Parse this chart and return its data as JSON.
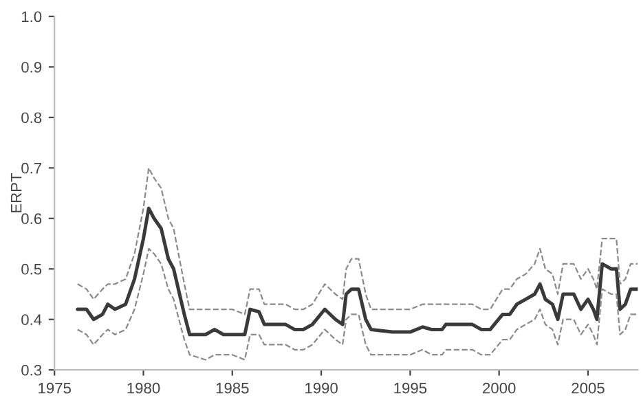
{
  "chart_data": {
    "type": "line",
    "ylabel": "ERPT",
    "x": [
      1976.3,
      1976.8,
      1977.2,
      1977.7,
      1978.0,
      1978.4,
      1979.0,
      1979.5,
      1980.0,
      1980.3,
      1980.6,
      1981.0,
      1981.4,
      1981.7,
      1982.3,
      1982.6,
      1983.5,
      1984.0,
      1984.5,
      1985.0,
      1985.7,
      1986.0,
      1986.5,
      1986.8,
      1987.5,
      1988.0,
      1988.5,
      1989.0,
      1989.5,
      1990.2,
      1990.8,
      1991.2,
      1991.4,
      1991.7,
      1992.1,
      1992.5,
      1992.8,
      1994.0,
      1995.0,
      1995.7,
      1996.2,
      1996.8,
      1997.0,
      1998.5,
      1999.0,
      1999.5,
      2000.2,
      2000.6,
      2001.0,
      2001.5,
      2002.0,
      2002.3,
      2002.6,
      2003.0,
      2003.3,
      2003.6,
      2004.2,
      2004.6,
      2005.0,
      2005.3,
      2005.5,
      2005.8,
      2006.3,
      2006.6,
      2006.8,
      2007.1,
      2007.4,
      2007.8
    ],
    "series": [
      {
        "color": "#3a3a3a",
        "line_style": "solid",
        "values": [
          0.42,
          0.42,
          0.4,
          0.41,
          0.43,
          0.42,
          0.43,
          0.48,
          0.56,
          0.62,
          0.6,
          0.58,
          0.52,
          0.5,
          0.41,
          0.37,
          0.37,
          0.38,
          0.37,
          0.37,
          0.37,
          0.42,
          0.415,
          0.39,
          0.39,
          0.39,
          0.38,
          0.38,
          0.39,
          0.42,
          0.4,
          0.39,
          0.45,
          0.46,
          0.46,
          0.4,
          0.38,
          0.375,
          0.375,
          0.385,
          0.38,
          0.38,
          0.39,
          0.39,
          0.38,
          0.38,
          0.41,
          0.41,
          0.43,
          0.44,
          0.45,
          0.47,
          0.44,
          0.43,
          0.4,
          0.45,
          0.45,
          0.42,
          0.44,
          0.42,
          0.4,
          0.51,
          0.5,
          0.5,
          0.42,
          0.43,
          0.46,
          0.46
        ]
      },
      {
        "color": "#8a8a8a",
        "line_style": "dashed",
        "values": [
          0.47,
          0.46,
          0.44,
          0.46,
          0.47,
          0.47,
          0.48,
          0.53,
          0.62,
          0.7,
          0.68,
          0.66,
          0.6,
          0.58,
          0.47,
          0.42,
          0.42,
          0.42,
          0.42,
          0.42,
          0.41,
          0.46,
          0.46,
          0.43,
          0.43,
          0.43,
          0.42,
          0.42,
          0.43,
          0.47,
          0.45,
          0.44,
          0.5,
          0.52,
          0.52,
          0.45,
          0.42,
          0.42,
          0.42,
          0.43,
          0.43,
          0.43,
          0.43,
          0.43,
          0.42,
          0.42,
          0.46,
          0.46,
          0.48,
          0.49,
          0.51,
          0.54,
          0.5,
          0.49,
          0.45,
          0.51,
          0.51,
          0.48,
          0.5,
          0.48,
          0.46,
          0.56,
          0.56,
          0.56,
          0.47,
          0.48,
          0.51,
          0.51
        ]
      },
      {
        "color": "#8a8a8a",
        "line_style": "dashed",
        "values": [
          0.38,
          0.37,
          0.35,
          0.37,
          0.38,
          0.37,
          0.38,
          0.42,
          0.49,
          0.54,
          0.53,
          0.51,
          0.46,
          0.44,
          0.36,
          0.33,
          0.32,
          0.33,
          0.33,
          0.33,
          0.32,
          0.37,
          0.37,
          0.35,
          0.35,
          0.35,
          0.34,
          0.34,
          0.35,
          0.38,
          0.36,
          0.35,
          0.4,
          0.41,
          0.41,
          0.35,
          0.33,
          0.33,
          0.33,
          0.34,
          0.33,
          0.33,
          0.34,
          0.34,
          0.33,
          0.33,
          0.36,
          0.36,
          0.38,
          0.39,
          0.4,
          0.42,
          0.39,
          0.38,
          0.35,
          0.4,
          0.4,
          0.37,
          0.39,
          0.37,
          0.35,
          0.46,
          0.45,
          0.45,
          0.37,
          0.38,
          0.41,
          0.41
        ]
      }
    ],
    "xlim": [
      1975,
      2007.8
    ],
    "xticks": [
      1975,
      1980,
      1985,
      1990,
      1995,
      2000,
      2005
    ],
    "ylim": [
      0.3,
      1.0
    ],
    "yticks": [
      {
        "value": 0.3,
        "label": "0.3"
      },
      {
        "value": 0.4,
        "label": "0.4"
      },
      {
        "value": 0.5,
        "label": "0.5"
      },
      {
        "value": 0.6,
        "label": "0.6"
      },
      {
        "value": 0.7,
        "label": "0.7"
      },
      {
        "value": 0.8,
        "label": "0.8"
      },
      {
        "value": 0.9,
        "label": "0.9"
      },
      {
        "value": 1.0,
        "label": "1.0"
      }
    ],
    "grid": false,
    "legend": false
  }
}
